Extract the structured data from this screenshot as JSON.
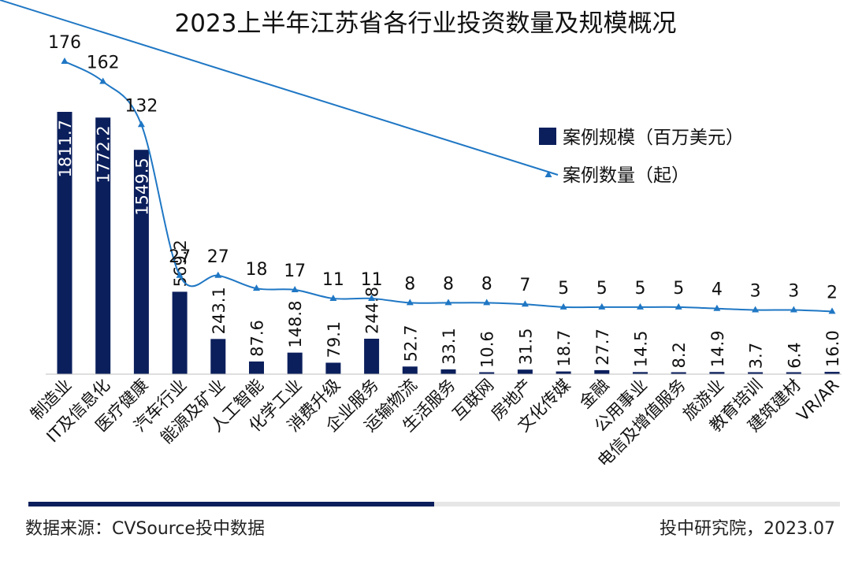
{
  "chart_data": {
    "type": "bar",
    "title": "2023上半年江苏省各行业投资数量及规模概况",
    "categories": [
      "制造业",
      "IT及信息化",
      "医疗健康",
      "汽车行业",
      "能源及矿业",
      "人工智能",
      "化学工业",
      "消费升级",
      "企业服务",
      "运输物流",
      "生活服务",
      "互联网",
      "房地产",
      "文化传媒",
      "金融",
      "公用事业",
      "电信及增值服务",
      "旅游业",
      "教育培训",
      "建筑建材",
      "VR/AR"
    ],
    "series": [
      {
        "name": "案例规模（百万美元）",
        "kind": "bar",
        "axis": "left",
        "color": "#0b1f5c",
        "values": [
          1811.7,
          1772.2,
          1549.5,
          569.2,
          243.1,
          87.6,
          148.8,
          79.1,
          244.8,
          52.7,
          33.1,
          10.6,
          31.5,
          18.7,
          27.7,
          14.5,
          8.2,
          14.9,
          3.7,
          6.4,
          16.0
        ],
        "labels": [
          "1811.7",
          "1772.2",
          "1549.5",
          "569.2",
          "243.1",
          "87.6",
          "148.8",
          "79.1",
          "244.8",
          "52.7",
          "33.1",
          "10.6",
          "31.5",
          "18.7",
          "27.7",
          "14.5",
          "8.2",
          "14.9",
          "3.7",
          "6.4",
          "16.0"
        ]
      },
      {
        "name": "案例数量（起）",
        "kind": "line",
        "axis": "right",
        "color": "#1f77c4",
        "values": [
          176,
          162,
          132,
          27,
          27,
          18,
          17,
          11,
          11,
          8,
          8,
          8,
          7,
          5,
          5,
          5,
          5,
          4,
          3,
          3,
          2
        ],
        "labels": [
          "176",
          "162",
          "132",
          "27",
          "27",
          "18",
          "17",
          "11",
          "11",
          "8",
          "8",
          "8",
          "7",
          "5",
          "5",
          "5",
          "5",
          "4",
          "3",
          "3",
          "2"
        ]
      }
    ],
    "ylim_left": [
      0,
      2000
    ],
    "ylim_right": [
      0,
      190
    ],
    "grid": false,
    "legend_position": "top-right"
  },
  "footer": {
    "source": "数据来源：CVSource投中数据",
    "org": "投中研究院，2023.07",
    "progress": 0.5
  },
  "colors": {
    "bar": "#0b1f5c",
    "line": "#1f77c4"
  }
}
